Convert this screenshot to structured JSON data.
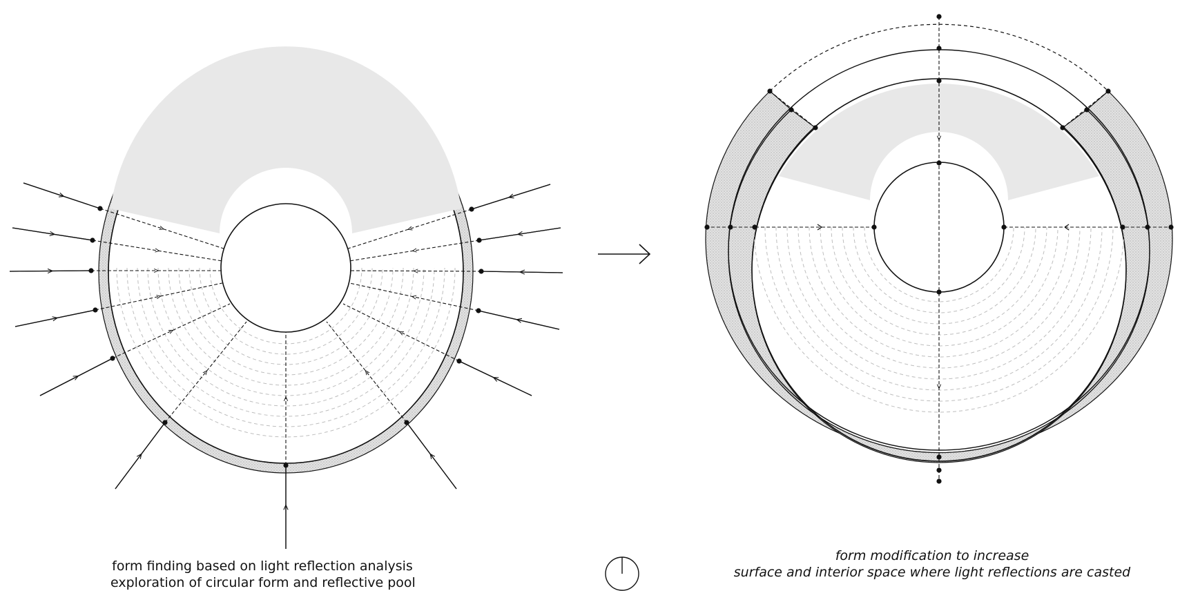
{
  "left_panel": {
    "caption_line1": "form finding based on light reflection analysis",
    "caption_line2": "exploration of circular form and reflective pool"
  },
  "right_panel": {
    "caption_line1": "form modification to increase",
    "caption_line2": "surface and interior space where light reflections are casted"
  },
  "icons": {
    "transition": "right-arrow-icon",
    "orientation": "north-symbol-icon"
  },
  "colors": {
    "line": "#111111",
    "hatch_fill": "#e2e2e2",
    "shade": "#e6e6e6",
    "guide": "#bdbdbd"
  }
}
